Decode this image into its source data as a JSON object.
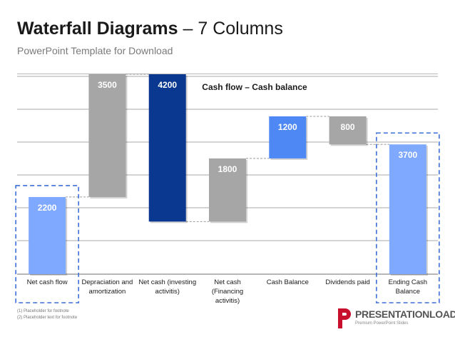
{
  "header": {
    "title_bold": "Waterfall Diagrams",
    "title_rest": " – 7 Columns",
    "subtitle": "PowerPoint Template for Download"
  },
  "chart_data": {
    "type": "bar",
    "subtype": "waterfall",
    "title": "Cash flow – Cash balance",
    "categories": [
      "Net cash flow",
      "Depraciation and amortization",
      "Net cash (investing activitis)",
      "Net cash (Financing activitis)",
      "Cash Balance",
      "Dividends paid",
      "Ending Cash Balance"
    ],
    "category_lines": [
      [
        "Net cash flow"
      ],
      [
        "Depraciation and",
        "amortization"
      ],
      [
        "Net cash (investing",
        "activitis)"
      ],
      [
        "Net cash",
        "(Financing",
        "activitis)"
      ],
      [
        "Cash Balance"
      ],
      [
        "Dividends paid"
      ],
      [
        "Ending Cash",
        "Balance"
      ]
    ],
    "values": [
      2200,
      3500,
      4200,
      1800,
      1200,
      800,
      3700
    ],
    "bar_ranges": [
      [
        0,
        2200
      ],
      [
        2200,
        5700
      ],
      [
        1500,
        5700
      ],
      [
        1500,
        3300
      ],
      [
        3300,
        4500
      ],
      [
        3700,
        4500
      ],
      [
        0,
        3700
      ]
    ],
    "colors": [
      "#7fa9ff",
      "#a6a6a6",
      "#0a3890",
      "#a6a6a6",
      "#4e88f5",
      "#a6a6a6",
      "#7fa9ff"
    ],
    "highlighted": [
      0,
      6
    ],
    "ylim": [
      0,
      5700
    ],
    "grid": true
  },
  "footnotes": [
    "(1)  Placeholder for footnote",
    "(2)  Placeholder text for footnote"
  ],
  "logo": {
    "name": "PRESENTATIONLOAD",
    "tagline": "Premium PowerPoint Slides"
  }
}
